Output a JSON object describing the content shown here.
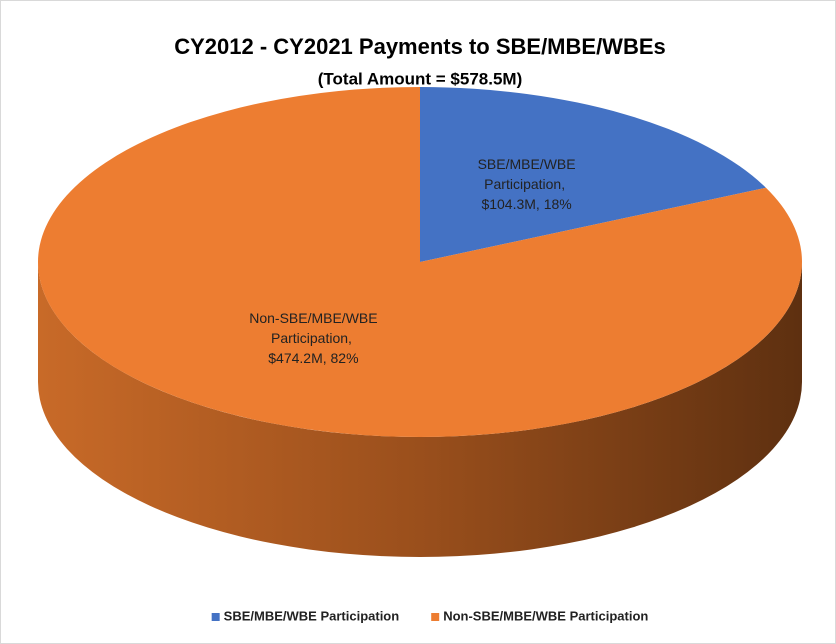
{
  "chart_data": {
    "type": "pie3d",
    "title": "CY2012 - CY2021 Payments to SBE/MBE/WBEs",
    "subtitle": "(Total Amount = $578.5M)",
    "categories": [
      "SBE/MBE/WBE Participation",
      "Non-SBE/MBE/WBE Participation"
    ],
    "values": [
      104.3,
      474.2
    ],
    "value_labels": [
      "$104.3M",
      "$474.2M"
    ],
    "percentages": [
      18,
      82
    ],
    "percent_labels": [
      "18%",
      "82%"
    ],
    "label_separator": ", ",
    "colors": [
      "#4472c4",
      "#ed7d31"
    ],
    "legend": "bottom"
  }
}
